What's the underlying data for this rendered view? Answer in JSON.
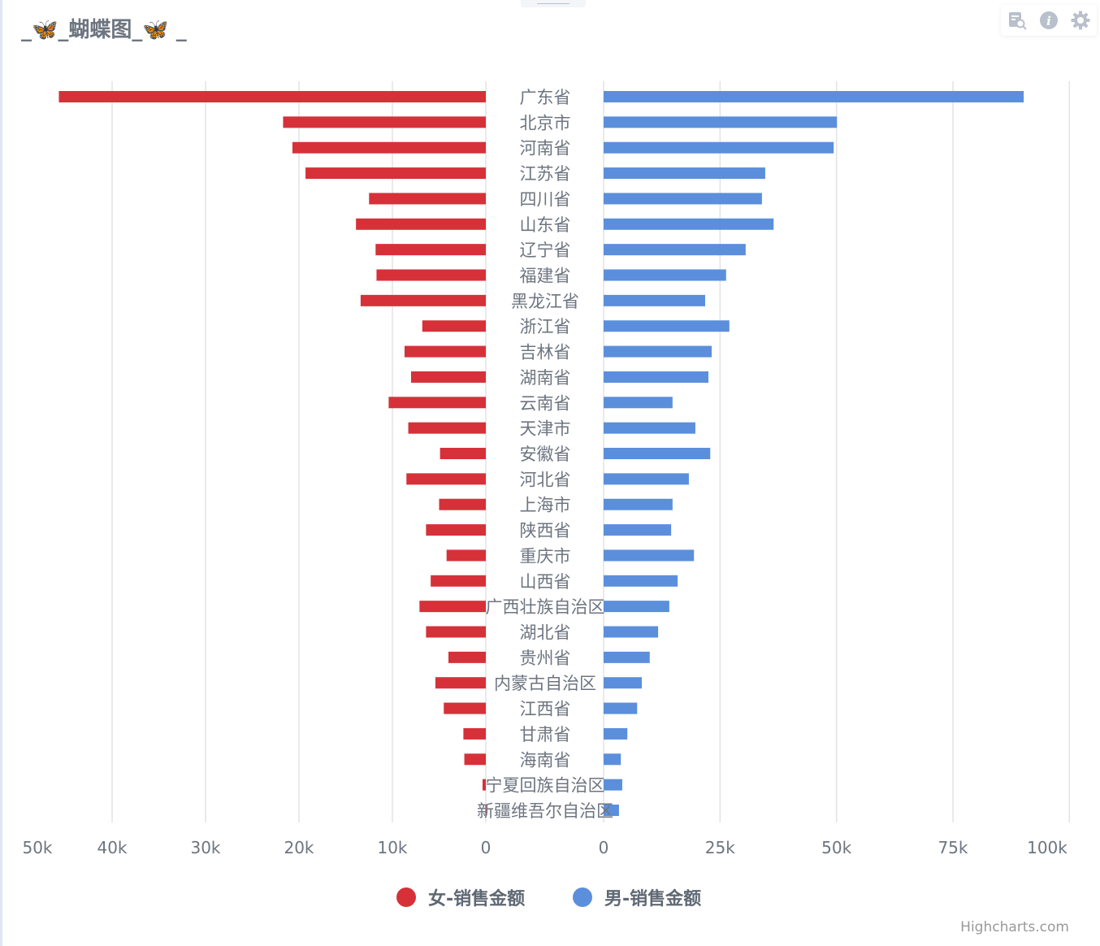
{
  "title": "_🦋_蝴蝶图_🦋 _",
  "toolbar": {
    "icons": [
      "data-view-icon",
      "info-icon",
      "settings-icon"
    ]
  },
  "credit": "Highcharts.com",
  "chart_data": {
    "type": "bar",
    "subtype": "butterfly",
    "title": "_🦋_蝴蝶图_🦋 _",
    "categories": [
      "广东省",
      "北京市",
      "河南省",
      "江苏省",
      "四川省",
      "山东省",
      "辽宁省",
      "福建省",
      "黑龙江省",
      "浙江省",
      "吉林省",
      "湖南省",
      "云南省",
      "天津市",
      "安徽省",
      "河北省",
      "上海市",
      "陕西省",
      "重庆市",
      "山西省",
      "广西壮族自治区",
      "湖北省",
      "贵州省",
      "内蒙古自治区",
      "江西省",
      "甘肃省",
      "海南省",
      "宁夏回族自治区",
      "新疆维吾尔自治区"
    ],
    "series": [
      {
        "name": "女-销售金额",
        "color": "#d63139",
        "side": "left",
        "unit": "k",
        "values": [
          45.7,
          21.7,
          20.7,
          19.3,
          12.5,
          13.9,
          11.8,
          11.7,
          13.4,
          6.8,
          8.7,
          8.0,
          10.4,
          8.3,
          4.9,
          8.5,
          5.0,
          6.4,
          4.2,
          5.9,
          7.1,
          6.4,
          4.0,
          5.4,
          4.5,
          2.4,
          2.3,
          0.35,
          0.05
        ]
      },
      {
        "name": "男-销售金额",
        "color": "#5b8fdc",
        "side": "right",
        "unit": "k",
        "values": [
          90.2,
          50.1,
          49.4,
          34.7,
          34.0,
          36.5,
          30.5,
          26.3,
          21.8,
          27.0,
          23.2,
          22.5,
          14.8,
          19.7,
          22.9,
          18.3,
          14.8,
          14.5,
          19.4,
          15.9,
          14.1,
          11.7,
          9.9,
          8.2,
          7.2,
          5.1,
          3.7,
          4.0,
          3.3
        ]
      }
    ],
    "left_axis": {
      "ticks": [
        0,
        10,
        20,
        30,
        40,
        50
      ],
      "tick_labels": [
        "0",
        "10k",
        "20k",
        "30k",
        "40k",
        "50k"
      ],
      "range": [
        0,
        50
      ]
    },
    "right_axis": {
      "ticks": [
        0,
        25,
        50,
        75,
        100
      ],
      "tick_labels": [
        "0",
        "25k",
        "50k",
        "75k",
        "100k"
      ],
      "range": [
        0,
        100
      ]
    },
    "legend": {
      "position": "bottom-center",
      "items": [
        "女-销售金额",
        "男-销售金额"
      ]
    },
    "grid": true
  }
}
